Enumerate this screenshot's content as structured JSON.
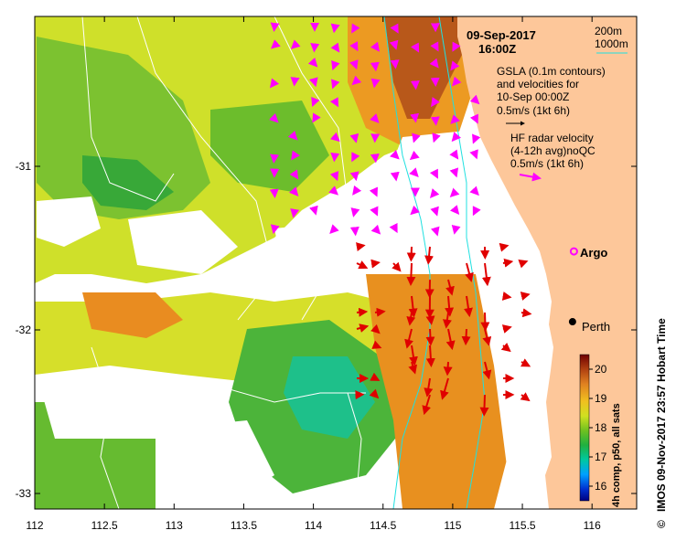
{
  "chart_data": {
    "type": "map",
    "date": "09-Sep-2017",
    "time": "16:00Z",
    "xlim": [
      112,
      116.3
    ],
    "ylim": [
      -33.1,
      -30.2
    ],
    "x_ticks": [
      "112",
      "112.5",
      "113",
      "113.5",
      "114",
      "114.5",
      "115",
      "115.5",
      "116"
    ],
    "x_tick_values": [
      112,
      112.5,
      113,
      113.5,
      114,
      114.5,
      115,
      115.5,
      116
    ],
    "y_ticks": [
      "-31",
      "-32",
      "-33"
    ],
    "y_tick_values": [
      -31,
      -32,
      -33
    ],
    "depth_legend": {
      "line1": "200m",
      "line2": "1000m",
      "color": "#20e0e0"
    },
    "gsla_text": {
      "line1": "GSLA (0.1m contours)",
      "line2": "and velocities for",
      "line3": "10-Sep 00:00Z",
      "line4": "0.5m/s (1kt 6h)"
    },
    "radar_text": {
      "line1": "HF radar velocity",
      "line2": "(4-12h avg)noQC",
      "line3": "0.5m/s (1kt 6h)"
    },
    "places": [
      {
        "name": "Argo",
        "lon": 115.87,
        "lat": -31.52,
        "marker": "circle-magenta"
      },
      {
        "name": "Perth",
        "lon": 115.86,
        "lat": -31.95,
        "marker": "dot-black"
      }
    ],
    "colorbar": {
      "title": "4h comp, p50, all sats",
      "ticks": [
        "16",
        "17",
        "18",
        "19",
        "20"
      ],
      "tick_values": [
        16,
        17,
        18,
        19,
        20
      ],
      "range": [
        15.5,
        20.5
      ]
    },
    "side_label": "IMOS 09-Nov-2017 23:57 Hobart Time",
    "copyright": "©",
    "land_color": "#fdc79a",
    "cloud_color": "#ffffff",
    "radar_arrow_color": "#ff00ff",
    "current_arrow_color": "#e00000"
  }
}
